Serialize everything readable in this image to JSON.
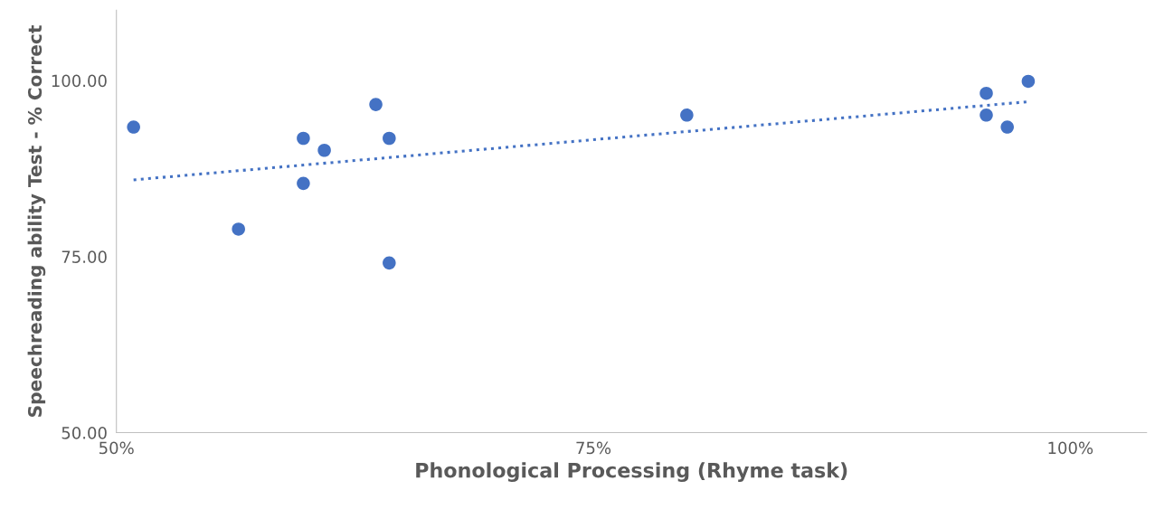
{
  "chart_data": {
    "type": "scatter",
    "xlabel": "Phonological Processing (Rhyme task)",
    "ylabel": "Speechreading ability Test - % Correct",
    "series": [
      {
        "color": "#4472c4",
        "marker": "circle",
        "x": [
          50.9,
          56.4,
          59.8,
          59.8,
          60.9,
          63.6,
          64.3,
          64.3,
          79.9,
          95.6,
          95.6,
          96.7,
          97.8
        ],
        "values": [
          93.4,
          78.9,
          91.8,
          85.4,
          90.1,
          96.6,
          91.8,
          74.1,
          95.1,
          98.2,
          95.1,
          93.4,
          99.9
        ]
      },
      {
        "type": "line",
        "color": "#4472c4",
        "line_style": "dotted",
        "marker": "none",
        "x": [
          50.9,
          97.8
        ],
        "values": [
          85.9,
          97.0
        ]
      }
    ],
    "xlim": [
      50,
      104
    ],
    "ylim": [
      50,
      110
    ],
    "xticks": [
      {
        "value": 50,
        "label": "50%"
      },
      {
        "value": 75,
        "label": "75%"
      },
      {
        "value": 100,
        "label": "100%"
      }
    ],
    "yticks": [
      {
        "value": 50,
        "label": "50.00"
      },
      {
        "value": 75,
        "label": "75.00"
      },
      {
        "value": 100,
        "label": "100.00"
      }
    ],
    "grid": false,
    "legend": false
  }
}
